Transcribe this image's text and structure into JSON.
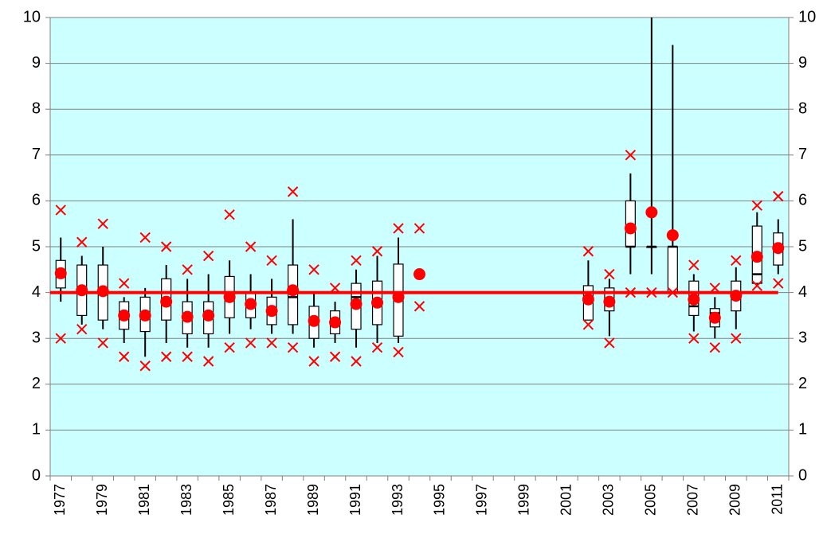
{
  "chart_data": {
    "type": "box",
    "categories": [
      "1977",
      null,
      "1979",
      null,
      "1981",
      null,
      "1983",
      null,
      "1985",
      null,
      "1987",
      null,
      "1989",
      null,
      "1991",
      null,
      "1993",
      null,
      "1995",
      null,
      "1997",
      null,
      "1999",
      null,
      "2001",
      null,
      "2003",
      null,
      "2005",
      null,
      "2007",
      null,
      "2009",
      null,
      "2011"
    ],
    "whisker_low": [
      3.8,
      3.3,
      3.2,
      2.9,
      2.6,
      2.9,
      2.8,
      2.8,
      3.1,
      3.2,
      3.1,
      3.1,
      2.8,
      2.9,
      2.8,
      2.9,
      2.9,
      null,
      null,
      null,
      null,
      null,
      null,
      null,
      null,
      3.4,
      3.05,
      4.4,
      4.4,
      4.0,
      3.15,
      3.0,
      3.2,
      4.15,
      4.4
    ],
    "q1": [
      4.1,
      3.5,
      3.4,
      3.2,
      3.15,
      3.4,
      3.1,
      3.1,
      3.45,
      3.45,
      3.3,
      3.3,
      3.0,
      3.1,
      3.2,
      3.3,
      3.05,
      null,
      null,
      null,
      null,
      null,
      null,
      null,
      null,
      3.4,
      3.6,
      5.0,
      5.0,
      4.0,
      3.5,
      3.25,
      3.6,
      4.2,
      4.6
    ],
    "median": [
      4.4,
      4.0,
      4.0,
      3.5,
      3.5,
      3.8,
      3.5,
      3.5,
      3.9,
      3.75,
      3.6,
      3.9,
      3.4,
      3.35,
      3.9,
      3.8,
      3.9,
      null,
      null,
      null,
      null,
      null,
      null,
      null,
      null,
      3.85,
      3.8,
      5.0,
      5.0,
      5.0,
      3.7,
      3.55,
      3.9,
      4.4,
      4.95
    ],
    "q3": [
      4.7,
      4.6,
      4.6,
      3.8,
      3.9,
      4.3,
      3.8,
      3.8,
      4.35,
      4.0,
      3.9,
      4.6,
      3.7,
      3.6,
      4.2,
      4.25,
      4.62,
      null,
      null,
      null,
      null,
      null,
      null,
      null,
      null,
      4.15,
      4.1,
      6.0,
      5.0,
      5.0,
      4.25,
      3.65,
      4.25,
      5.45,
      5.3
    ],
    "whisker_high": [
      5.2,
      4.8,
      5.0,
      3.9,
      4.1,
      4.6,
      4.3,
      4.4,
      4.7,
      4.4,
      4.3,
      5.6,
      4.0,
      3.8,
      4.5,
      4.8,
      5.2,
      null,
      null,
      null,
      null,
      null,
      null,
      null,
      null,
      4.7,
      4.3,
      6.6,
      10,
      9.4,
      4.4,
      3.9,
      4.55,
      5.75,
      5.6
    ],
    "mean": [
      4.42,
      4.05,
      4.03,
      3.5,
      3.5,
      3.8,
      3.47,
      3.5,
      3.9,
      3.75,
      3.6,
      4.05,
      3.38,
      3.35,
      3.75,
      3.78,
      3.9,
      4.4,
      null,
      null,
      null,
      null,
      null,
      null,
      null,
      3.85,
      3.8,
      5.4,
      5.75,
      5.25,
      3.85,
      3.45,
      3.93,
      4.78,
      4.97
    ],
    "min": [
      3.0,
      3.2,
      2.9,
      2.6,
      2.4,
      2.6,
      2.6,
      2.5,
      2.8,
      2.9,
      2.9,
      2.8,
      2.5,
      2.6,
      2.5,
      2.8,
      2.7,
      3.7,
      null,
      null,
      null,
      null,
      null,
      null,
      null,
      3.3,
      2.9,
      4.0,
      4.0,
      4.0,
      3.0,
      2.8,
      3.0,
      4.15,
      4.2
    ],
    "max": [
      5.8,
      5.1,
      5.5,
      4.2,
      5.2,
      5.0,
      4.5,
      4.8,
      5.7,
      5.0,
      4.7,
      6.2,
      4.5,
      4.1,
      4.7,
      4.9,
      5.4,
      5.4,
      null,
      null,
      null,
      null,
      null,
      null,
      null,
      4.9,
      4.4,
      7.0,
      null,
      null,
      4.6,
      4.1,
      4.7,
      5.9,
      6.1
    ],
    "reference_line": 4,
    "ylim": [
      0,
      10
    ],
    "yticks": [
      0,
      1,
      2,
      3,
      4,
      5,
      6,
      7,
      8,
      9,
      10
    ],
    "y2lim": [
      0,
      10
    ],
    "y2ticks": [
      0,
      1,
      2,
      3,
      4,
      5,
      6,
      7,
      8,
      9,
      10
    ],
    "grid": true,
    "background": "#ccffff",
    "marker_color": "#ff0000",
    "box_color": "#000000"
  }
}
